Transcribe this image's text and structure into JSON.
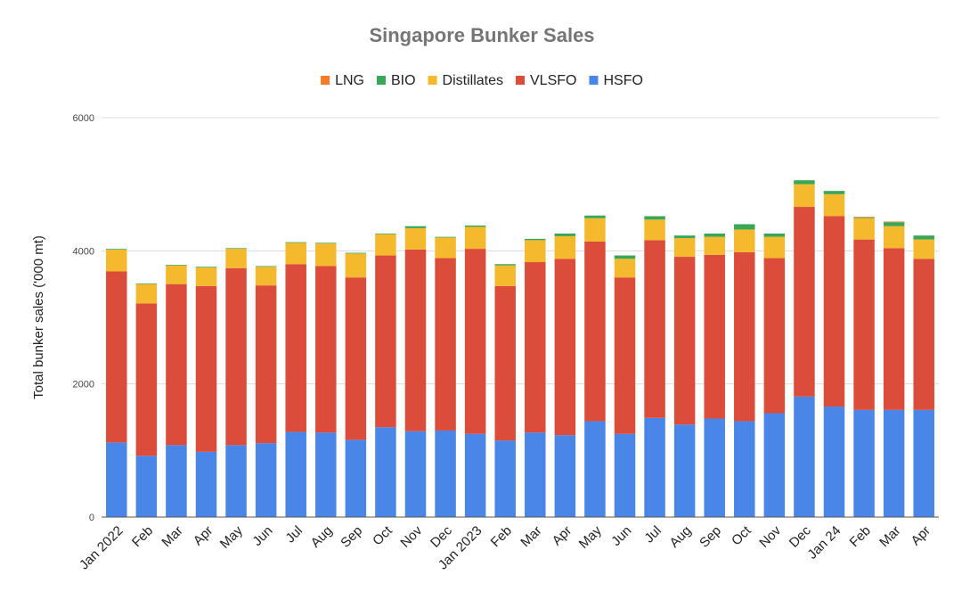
{
  "chart_data": {
    "type": "bar",
    "stacked": true,
    "title": "Singapore Bunker Sales",
    "xlabel": "",
    "ylabel": "Total bunker sales ('000 mt)",
    "ylim": [
      0,
      6000
    ],
    "yticks": [
      "0",
      "2000",
      "4000",
      "6000"
    ],
    "grid": true,
    "legend_position": "top",
    "categories": [
      "Jan 2022",
      "Feb",
      "Mar",
      "Apr",
      "May",
      "Jun",
      "Jul",
      "Aug",
      "Sep",
      "Oct",
      "Nov",
      "Dec",
      "Jan 2023",
      "Feb",
      "Mar",
      "Apr",
      "May",
      "Jun",
      "Jul",
      "Aug",
      "Sep",
      "Oct",
      "Nov",
      "Dec",
      "Jan 24",
      "Feb",
      "Mar",
      "Apr"
    ],
    "legend_order": [
      "LNG",
      "BIO",
      "Distillates",
      "VLSFO",
      "HSFO"
    ],
    "series": [
      {
        "name": "HSFO",
        "color": "#4a86e8",
        "values": [
          1120,
          920,
          1080,
          980,
          1080,
          1110,
          1280,
          1270,
          1160,
          1350,
          1290,
          1300,
          1250,
          1150,
          1270,
          1230,
          1440,
          1250,
          1490,
          1390,
          1480,
          1440,
          1560,
          1810,
          1660,
          1610,
          1610,
          1610
        ]
      },
      {
        "name": "VLSFO",
        "color": "#dc4c3b",
        "values": [
          2570,
          2290,
          2420,
          2490,
          2660,
          2370,
          2520,
          2500,
          2440,
          2580,
          2730,
          2590,
          2780,
          2320,
          2560,
          2650,
          2700,
          2350,
          2670,
          2520,
          2460,
          2540,
          2330,
          2850,
          2860,
          2560,
          2430,
          2270
        ]
      },
      {
        "name": "Distillates",
        "color": "#f4b92c",
        "values": [
          330,
          290,
          280,
          280,
          290,
          280,
          320,
          340,
          360,
          320,
          320,
          310,
          330,
          310,
          330,
          340,
          350,
          280,
          310,
          280,
          270,
          340,
          320,
          340,
          330,
          320,
          330,
          290
        ]
      },
      {
        "name": "BIO",
        "color": "#3aa757",
        "values": [
          10,
          10,
          10,
          10,
          10,
          10,
          10,
          10,
          10,
          10,
          30,
          10,
          20,
          20,
          20,
          40,
          40,
          50,
          50,
          40,
          50,
          80,
          50,
          60,
          50,
          10,
          60,
          60
        ]
      },
      {
        "name": "LNG",
        "color": "#f47c28",
        "values": [
          0,
          0,
          0,
          0,
          0,
          0,
          0,
          0,
          0,
          0,
          0,
          0,
          0,
          0,
          0,
          0,
          0,
          0,
          0,
          0,
          0,
          0,
          0,
          0,
          0,
          10,
          10,
          0
        ]
      }
    ]
  }
}
